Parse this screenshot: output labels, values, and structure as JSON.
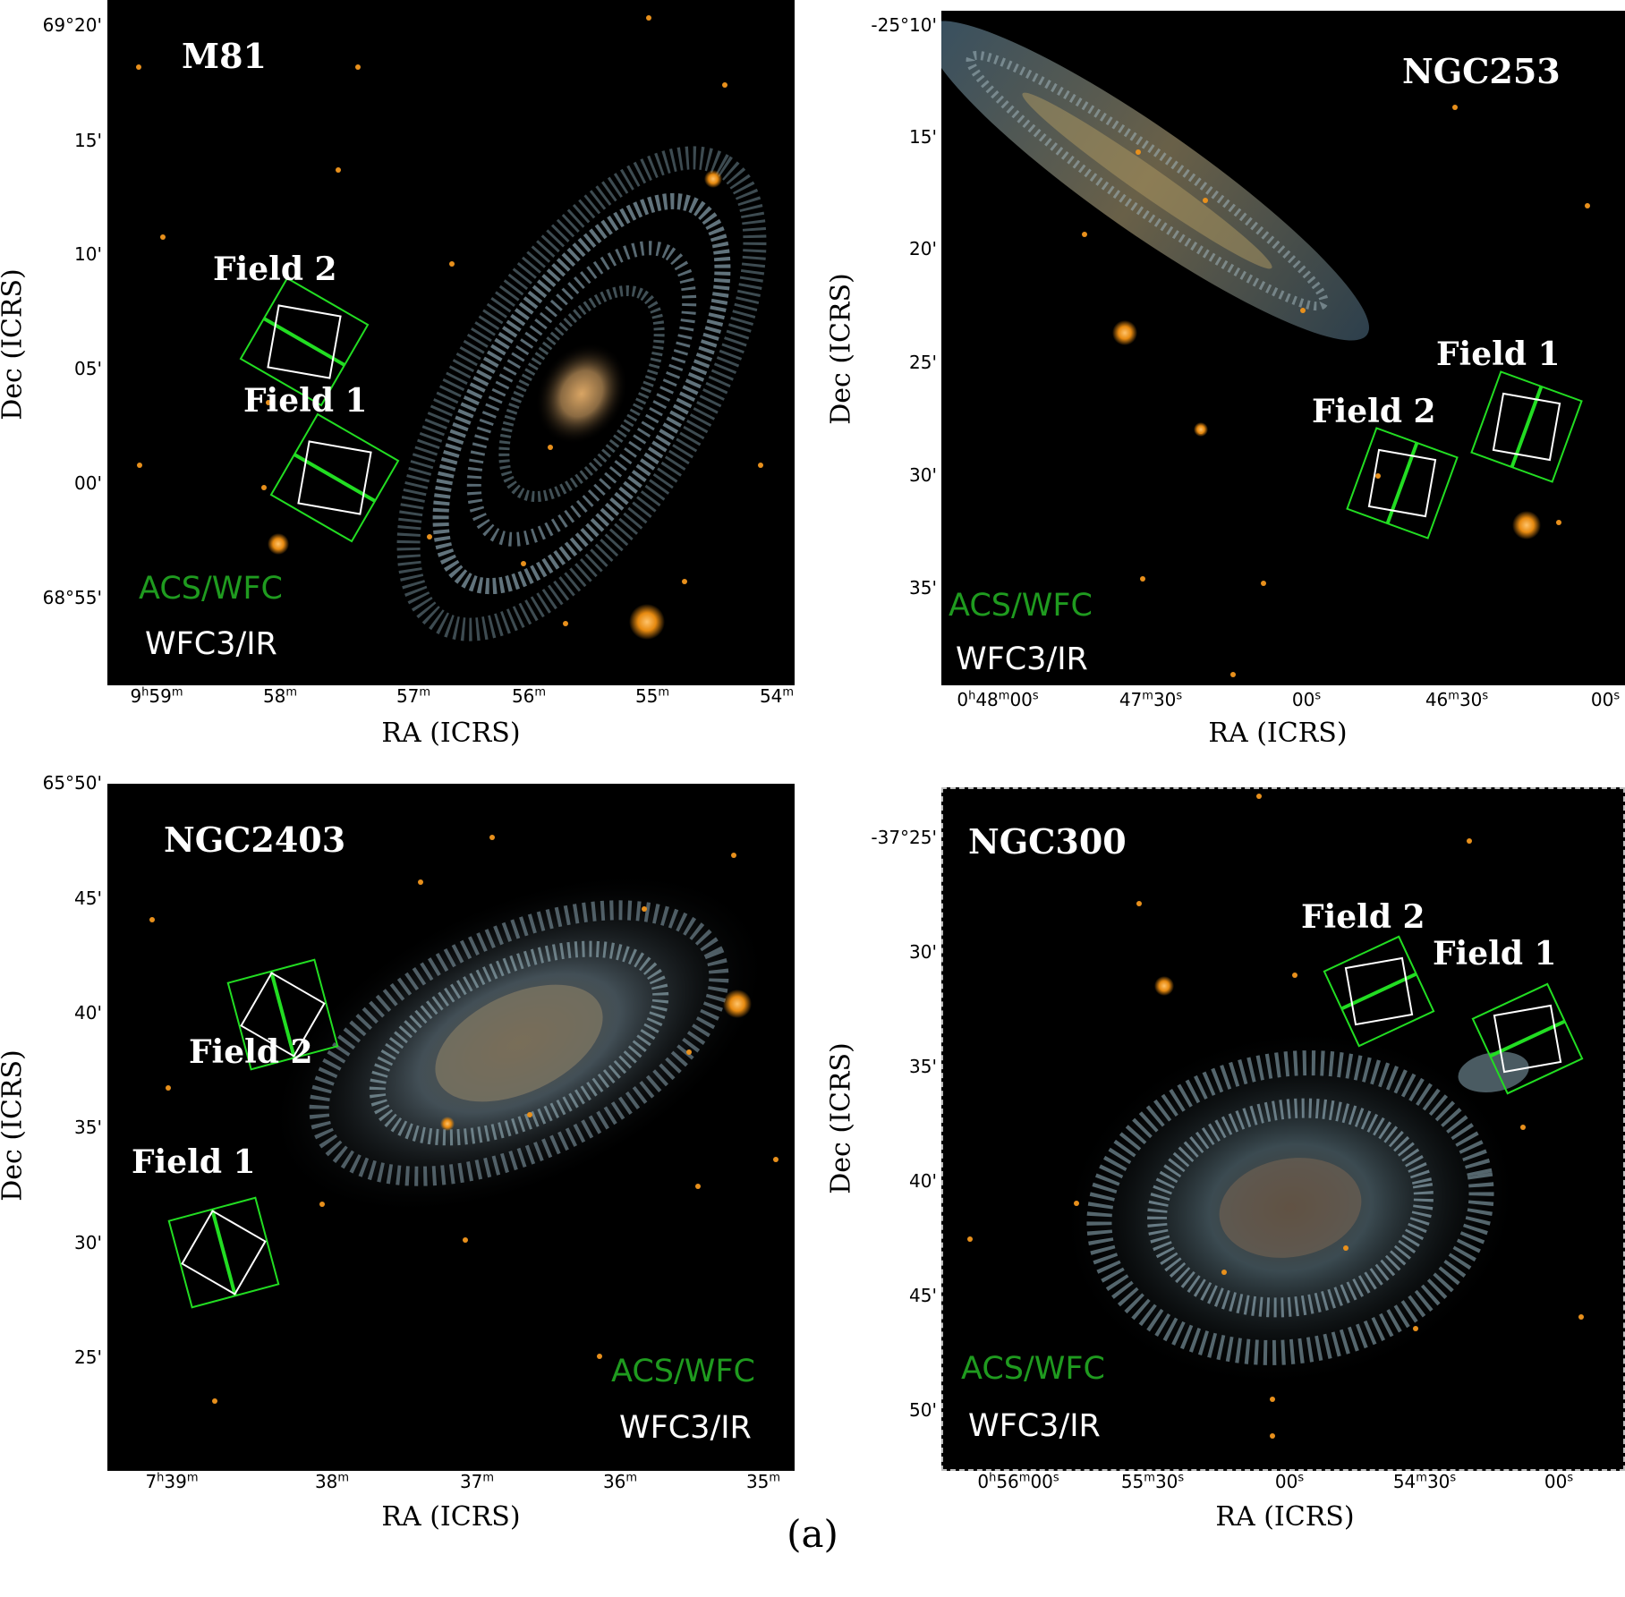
{
  "legend": {
    "acs": "ACS/WFC",
    "wfc3": "WFC3/IR"
  },
  "axis_labels": {
    "x": "RA (ICRS)",
    "y": "Dec (ICRS)"
  },
  "caption": "(a)",
  "panels": [
    {
      "galaxy": "M81",
      "field_labels": [
        "Field 1",
        "Field 2"
      ],
      "dec_ticks": [
        "69°20'",
        "15'",
        "10'",
        "05'",
        "00'",
        "68°55'"
      ],
      "ra_ticks": [
        {
          "v": "9",
          "u": "h",
          "v2": "59",
          "u2": "m"
        },
        {
          "v": "58",
          "u": "m"
        },
        {
          "v": "57",
          "u": "m"
        },
        {
          "v": "56",
          "u": "m"
        },
        {
          "v": "55",
          "u": "m"
        },
        {
          "v": "54",
          "u": "m"
        }
      ]
    },
    {
      "galaxy": "NGC253",
      "field_labels": [
        "Field 1",
        "Field 2"
      ],
      "dec_ticks": [
        "-25°10'",
        "15'",
        "20'",
        "25'",
        "30'",
        "35'"
      ],
      "ra_ticks": [
        {
          "v": "0",
          "u": "h",
          "v2": "48",
          "u2": "m",
          "v3": "00",
          "u3": "s"
        },
        {
          "v": "47",
          "u": "m",
          "v2": "30",
          "u2": "s"
        },
        {
          "v": "00",
          "u": "s"
        },
        {
          "v": "46",
          "u": "m",
          "v2": "30",
          "u2": "s"
        },
        {
          "v": "00",
          "u": "s"
        }
      ]
    },
    {
      "galaxy": "NGC2403",
      "field_labels": [
        "Field 1",
        "Field 2"
      ],
      "dec_ticks": [
        "65°50'",
        "45'",
        "40'",
        "35'",
        "30'",
        "25'"
      ],
      "ra_ticks": [
        {
          "v": "7",
          "u": "h",
          "v2": "39",
          "u2": "m"
        },
        {
          "v": "38",
          "u": "m"
        },
        {
          "v": "37",
          "u": "m"
        },
        {
          "v": "36",
          "u": "m"
        },
        {
          "v": "35",
          "u": "m"
        }
      ]
    },
    {
      "galaxy": "NGC300",
      "field_labels": [
        "Field 1",
        "Field 2"
      ],
      "dec_ticks": [
        "-37°25'",
        "30'",
        "35'",
        "40'",
        "45'",
        "50'"
      ],
      "ra_ticks": [
        {
          "v": "0",
          "u": "h",
          "v2": "56",
          "u2": "m",
          "v3": "00",
          "u3": "s"
        },
        {
          "v": "55",
          "u": "m",
          "v2": "30",
          "u2": "s"
        },
        {
          "v": "00",
          "u": "s"
        },
        {
          "v": "54",
          "u": "m",
          "v2": "30",
          "u2": "s"
        },
        {
          "v": "00",
          "u": "s"
        }
      ]
    }
  ],
  "colors": {
    "acs": "#1f9b1f",
    "footprint_acs": "#22dd22",
    "footprint_wfc3": "#ffffff"
  }
}
